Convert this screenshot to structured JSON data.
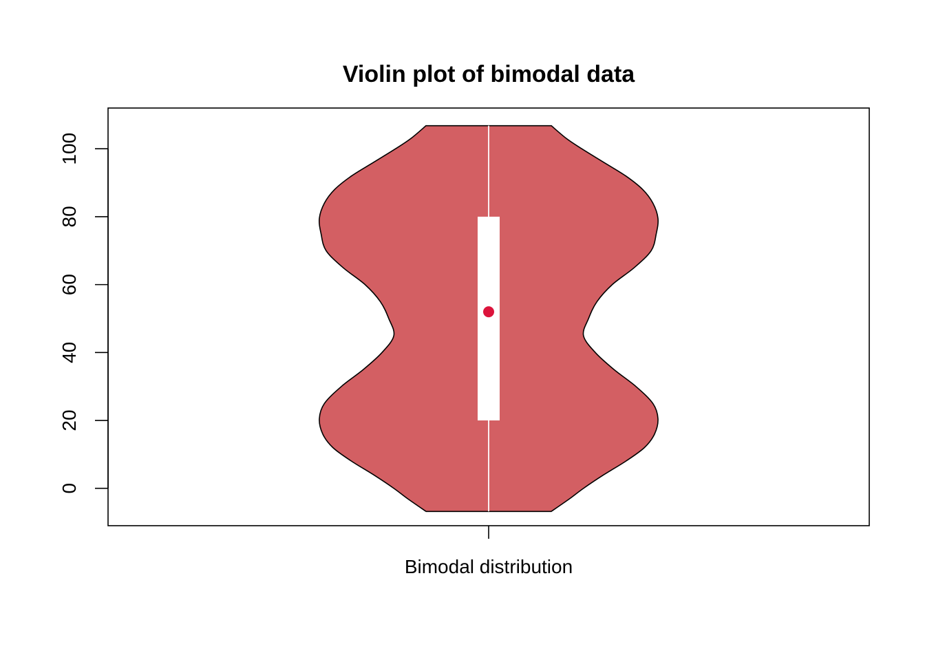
{
  "chart_data": {
    "type": "violin",
    "title": "Violin plot of bimodal data",
    "xlabel": "",
    "ylabel": "",
    "categories": [
      "Bimodal distribution"
    ],
    "ylim": [
      -11,
      112
    ],
    "y_ticks": [
      0,
      20,
      40,
      60,
      80,
      100
    ],
    "grid": false,
    "legend": "none",
    "series": [
      {
        "category": "Bimodal distribution",
        "data_min": -6.8,
        "data_max": 106.8,
        "q1": 20,
        "median": 52,
        "q3": 80,
        "whisker_low": -6.8,
        "whisker_high": 106.8,
        "density_profile": [
          {
            "y": -6.8,
            "w": 0.37
          },
          {
            "y": -3,
            "w": 0.48
          },
          {
            "y": 0,
            "w": 0.56
          },
          {
            "y": 4,
            "w": 0.68
          },
          {
            "y": 8,
            "w": 0.81
          },
          {
            "y": 12,
            "w": 0.92
          },
          {
            "y": 16,
            "w": 0.98
          },
          {
            "y": 20.5,
            "w": 1.0
          },
          {
            "y": 25,
            "w": 0.97
          },
          {
            "y": 30,
            "w": 0.87
          },
          {
            "y": 35,
            "w": 0.74
          },
          {
            "y": 40,
            "w": 0.63
          },
          {
            "y": 45,
            "w": 0.56
          },
          {
            "y": 50,
            "w": 0.59
          },
          {
            "y": 55,
            "w": 0.64
          },
          {
            "y": 60,
            "w": 0.73
          },
          {
            "y": 65,
            "w": 0.86
          },
          {
            "y": 70,
            "w": 0.96
          },
          {
            "y": 75,
            "w": 0.99
          },
          {
            "y": 79.5,
            "w": 1.0
          },
          {
            "y": 84,
            "w": 0.97
          },
          {
            "y": 88,
            "w": 0.91
          },
          {
            "y": 92,
            "w": 0.81
          },
          {
            "y": 96,
            "w": 0.68
          },
          {
            "y": 100,
            "w": 0.55
          },
          {
            "y": 103,
            "w": 0.46
          },
          {
            "y": 106.8,
            "w": 0.37
          }
        ]
      }
    ],
    "colors": {
      "violin_fill": "#D35F63",
      "violin_stroke": "#000000",
      "box_fill": "#ffffff",
      "median_point": "#DC143C",
      "whisker": "#ffffff",
      "axis": "#000000"
    }
  }
}
